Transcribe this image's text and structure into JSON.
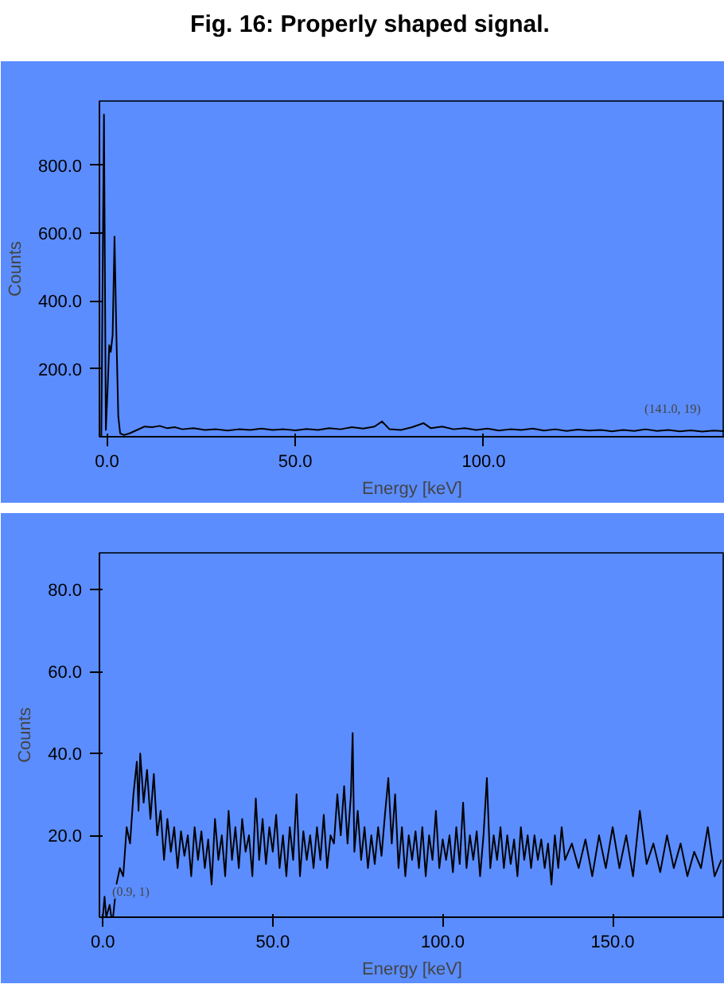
{
  "chart_data": [
    {
      "type": "line",
      "title": "Fig. 16: Properly shaped signal.",
      "xlabel": "Energy [keV]",
      "ylabel": "Counts",
      "xlim": [
        -2,
        164
      ],
      "ylim": [
        0,
        990
      ],
      "xticks": [
        {
          "value": 0,
          "label": "0.0"
        },
        {
          "value": 50,
          "label": "50.0"
        },
        {
          "value": 100,
          "label": "100.0"
        }
      ],
      "yticks": [
        {
          "value": 200,
          "label": "200.0"
        },
        {
          "value": 400,
          "label": "400.0"
        },
        {
          "value": 600,
          "label": "600.0"
        },
        {
          "value": 800,
          "label": "800.0"
        }
      ],
      "grid": false,
      "annotations": [
        {
          "text": "(141.0, 19)",
          "x": 141,
          "y": 19
        }
      ],
      "series": [
        {
          "color": "#000000",
          "x": [
            -1.5,
            -0.8,
            -0.3,
            0.2,
            0.6,
            1.0,
            1.5,
            2.0,
            2.5,
            3.0,
            3.5,
            4.5,
            6,
            8,
            10,
            12,
            14,
            16,
            18,
            20,
            23,
            26,
            29,
            32,
            35,
            38,
            41,
            44,
            47,
            50,
            53,
            56,
            59,
            62,
            65,
            68,
            71,
            73,
            75,
            78,
            81,
            84,
            86,
            89,
            92,
            95,
            98,
            101,
            104,
            107,
            110,
            113,
            116,
            119,
            122,
            125,
            128,
            131,
            134,
            137,
            140,
            141,
            143,
            146,
            149,
            152,
            155,
            158,
            161,
            164
          ],
          "values": [
            0,
            950,
            20,
            150,
            270,
            250,
            300,
            590,
            300,
            60,
            10,
            5,
            10,
            20,
            30,
            28,
            32,
            25,
            28,
            22,
            25,
            20,
            22,
            18,
            22,
            20,
            24,
            20,
            22,
            19,
            23,
            20,
            25,
            22,
            28,
            24,
            30,
            45,
            22,
            20,
            28,
            40,
            25,
            30,
            22,
            25,
            20,
            24,
            18,
            22,
            20,
            24,
            18,
            22,
            17,
            21,
            18,
            20,
            16,
            20,
            17,
            19,
            22,
            17,
            20,
            16,
            19,
            15,
            18,
            16
          ]
        }
      ]
    },
    {
      "type": "line",
      "xlabel": "Energy [keV]",
      "ylabel": "Counts",
      "xlim": [
        -1,
        183
      ],
      "ylim": [
        0,
        89
      ],
      "xticks": [
        {
          "value": 0,
          "label": "0.0"
        },
        {
          "value": 50,
          "label": "50.0"
        },
        {
          "value": 100,
          "label": "100.0"
        },
        {
          "value": 150,
          "label": "150.0"
        }
      ],
      "yticks": [
        {
          "value": 20,
          "label": "20.0"
        },
        {
          "value": 40,
          "label": "40.0"
        },
        {
          "value": 60,
          "label": "60.0"
        },
        {
          "value": 80,
          "label": "80.0"
        }
      ],
      "grid": false,
      "annotations": [
        {
          "text": "(0.9, 1)",
          "x": 0.9,
          "y": 1
        }
      ],
      "series": [
        {
          "color": "#000000",
          "x": [
            0,
            0.5,
            1,
            2,
            2.5,
            3,
            4,
            5,
            6,
            7,
            8,
            9,
            10,
            10.5,
            11,
            12,
            13,
            14,
            15,
            16,
            17,
            18,
            19,
            20,
            21,
            22,
            23,
            24,
            25,
            26,
            27,
            28,
            29,
            30,
            31,
            32,
            33,
            34,
            35,
            36,
            37,
            38,
            39,
            40,
            41,
            42,
            43,
            44,
            45,
            46,
            47,
            48,
            49,
            50,
            51,
            52,
            53,
            54,
            55,
            56,
            57,
            58,
            59,
            60,
            61,
            62,
            63,
            64,
            65,
            66,
            67,
            68,
            69,
            70,
            71,
            72,
            73,
            73.5,
            74,
            75,
            76,
            77,
            78,
            79,
            80,
            81,
            82,
            83,
            84,
            85,
            86,
            87,
            88,
            89,
            90,
            91,
            92,
            93,
            94,
            95,
            96,
            97,
            98,
            99,
            100,
            101,
            102,
            103,
            104,
            105,
            106,
            107,
            108,
            109,
            110,
            111,
            112,
            113,
            114,
            115,
            116,
            117,
            118,
            119,
            120,
            121,
            122,
            123,
            124,
            125,
            126,
            127,
            128,
            129,
            130,
            131,
            132,
            133,
            134,
            135,
            136,
            138,
            140,
            142,
            144,
            146,
            148,
            150,
            152,
            154,
            156,
            158,
            160,
            162,
            164,
            166,
            168,
            170,
            172,
            174,
            176,
            178,
            180,
            182
          ],
          "values": [
            0,
            5,
            0,
            3,
            0,
            0,
            8,
            12,
            10,
            22,
            18,
            30,
            38,
            26,
            40,
            28,
            36,
            24,
            35,
            20,
            26,
            14,
            24,
            16,
            22,
            12,
            21,
            15,
            20,
            10,
            22,
            14,
            21,
            12,
            19,
            8,
            24,
            14,
            20,
            10,
            26,
            14,
            22,
            12,
            24,
            16,
            20,
            10,
            29,
            14,
            24,
            13,
            22,
            16,
            25,
            12,
            20,
            10,
            22,
            14,
            30,
            10,
            21,
            14,
            20,
            12,
            22,
            14,
            25,
            12,
            20,
            18,
            30,
            20,
            32,
            18,
            30,
            45,
            16,
            26,
            14,
            22,
            12,
            20,
            13,
            22,
            15,
            25,
            34,
            18,
            30,
            12,
            22,
            10,
            20,
            14,
            21,
            12,
            22,
            10,
            20,
            14,
            26,
            12,
            19,
            14,
            20,
            11,
            22,
            13,
            28,
            12,
            20,
            14,
            21,
            10,
            20,
            34,
            12,
            20,
            14,
            22,
            12,
            20,
            13,
            19,
            10,
            22,
            14,
            20,
            12,
            20,
            14,
            19,
            12,
            18,
            8,
            20,
            12,
            22,
            14,
            18,
            12,
            19,
            10,
            20,
            12,
            22,
            12,
            20,
            10,
            26,
            13,
            18,
            11,
            20,
            12,
            18,
            10,
            16,
            12,
            22,
            10,
            14
          ]
        }
      ]
    }
  ]
}
